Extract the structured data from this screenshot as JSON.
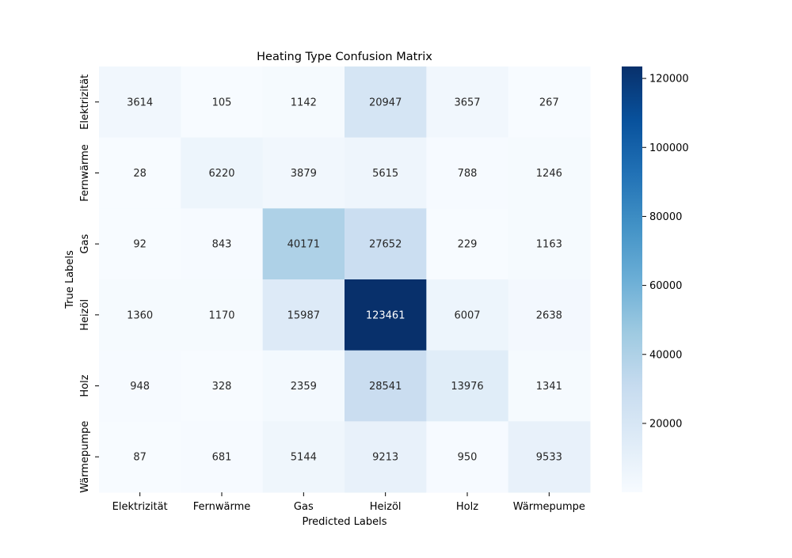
{
  "chart_data": {
    "type": "heatmap",
    "title": "Heating Type Confusion Matrix",
    "xlabel": "Predicted Labels",
    "ylabel": "True Labels",
    "x_categories": [
      "Elektrizität",
      "Fernwärme",
      "Gas",
      "Heizöl",
      "Holz",
      "Wärmepumpe"
    ],
    "y_categories": [
      "Elektrizität",
      "Fernwärme",
      "Gas",
      "Heizöl",
      "Holz",
      "Wärmepumpe"
    ],
    "values": [
      [
        3614,
        105,
        1142,
        20947,
        3657,
        267
      ],
      [
        28,
        6220,
        3879,
        5615,
        788,
        1246
      ],
      [
        92,
        843,
        40171,
        27652,
        229,
        1163
      ],
      [
        1360,
        1170,
        15987,
        123461,
        6007,
        2638
      ],
      [
        948,
        328,
        2359,
        28541,
        13976,
        1341
      ],
      [
        87,
        681,
        5144,
        9213,
        950,
        9533
      ]
    ],
    "colormap": "Blues",
    "colorbar": {
      "min": 28,
      "max": 123461,
      "ticks": [
        20000,
        40000,
        60000,
        80000,
        100000,
        120000
      ]
    }
  }
}
